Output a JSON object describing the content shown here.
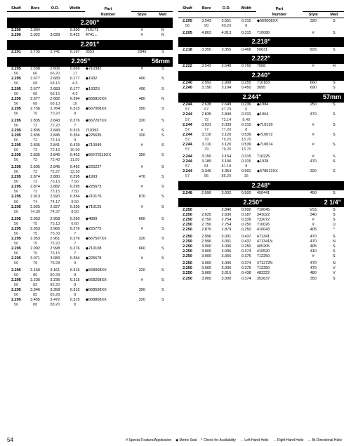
{
  "page_number": "54",
  "headers": [
    "Shaft",
    "Bore",
    "O.D.",
    "Width",
    "Part",
    "Number",
    "Style",
    "Matl"
  ],
  "legend_items": [
    "# Special Feature/Application",
    "◆ Metric Seal",
    "* Check for Availability",
    "← Left Hand Helix",
    "→ Right Hand Helix",
    "↔ Bi-Directional Helix"
  ],
  "left_sections": [
    {
      "label": "2.200\"",
      "rows": [
        [
          "2.200",
          "2.804",
          "-",
          "0.300",
          "710171",
          "#",
          "N"
        ],
        [
          "2.200",
          "3.022",
          "3.028",
          "0.422",
          "4741←",
          "#",
          "N"
        ]
      ]
    },
    {
      "label": "2.201\"",
      "rows": [
        [
          "2.201",
          "2.735",
          "2.741",
          "0.197",
          "3553",
          "2840",
          "S"
        ]
      ]
    },
    {
      "label": "2.205\"",
      "right": "56mm",
      "rows": [
        [
          "2.205",
          "2.598",
          "2.606",
          "0.669",
          "◆710382",
          "#",
          "S"
        ],
        [
          "56",
          "66",
          "66.20",
          "17",
          "",
          "",
          ""
        ],
        [
          "2.205",
          "2.677",
          "2.683",
          "0.177",
          "◆1932",
          "490",
          "S"
        ],
        [
          "56",
          "68",
          "68.15",
          "4.5",
          "",
          "",
          ""
        ],
        [
          "2.205",
          "2.677",
          "2.683",
          "0.177",
          "◆1932S",
          "490",
          "S"
        ],
        [
          "56",
          "68",
          "68.15",
          "4.5",
          "",
          "",
          ""
        ],
        [
          "2.205",
          "2.677",
          "2.682",
          "0.394",
          "◆566810XX",
          "480",
          "N"
        ],
        [
          "56",
          "68",
          "68.13",
          "10",
          "",
          "",
          ""
        ],
        [
          "2.205",
          "2.756",
          "2.764",
          "0.315",
          "◆567008XX",
          "350",
          "S"
        ],
        [
          "56",
          "70",
          "70.20",
          "8",
          "",
          "",
          ""
        ]
      ]
    },
    {
      "label": "",
      "rows": [
        [
          "2.205",
          "2.835",
          "2.843",
          "0.276",
          "◆567207XX",
          "320",
          "S"
        ],
        [
          "56",
          "72",
          "72.20",
          "7",
          "",
          "",
          ""
        ],
        [
          "2.205",
          "2.835",
          "2.843",
          "0.315",
          "710393",
          "#",
          "S"
        ],
        [
          "2.205",
          "2.835",
          "2.845",
          "0.354",
          "◆225635",
          "320",
          "S"
        ],
        [
          "56",
          "72",
          "72.14",
          "9",
          "",
          "",
          ""
        ],
        [
          "2.205",
          "2.835",
          "2.841",
          "0.429",
          "◆710049",
          "#",
          "S"
        ],
        [
          "56",
          "72",
          "72.16",
          "10.90",
          "",
          "",
          ""
        ],
        [
          "2.205",
          "2.835",
          "2.846",
          "0.453",
          "◆56X72115XX",
          "350",
          "S"
        ],
        [
          "56",
          "72",
          "72.40",
          "11.50",
          "",
          "",
          ""
        ]
      ]
    },
    {
      "label": "",
      "rows": [
        [
          "2.205",
          "2.835",
          "2.845",
          "0.492",
          "◆225227",
          "#",
          "S"
        ],
        [
          "56",
          "72",
          "72.27",
          "12.50",
          "",
          "",
          ""
        ],
        [
          "2.205",
          "2.874",
          "2.880",
          "0.295",
          "◆1993",
          "470",
          "S"
        ],
        [
          "56",
          "73",
          "73.15",
          "7.50",
          "",
          "",
          ""
        ],
        [
          "2.205",
          "2.874",
          "2.882",
          "0.295",
          "◆225673",
          "#",
          "S"
        ],
        [
          "56",
          "73",
          "73.15",
          "7.50",
          "",
          "",
          ""
        ],
        [
          "2.205",
          "2.913",
          "2.920",
          "0.354",
          "◆710176",
          "870",
          "S"
        ],
        [
          "56",
          "74",
          "74.17",
          "9.50",
          "",
          "",
          ""
        ],
        [
          "2.205",
          "2.925",
          "2.927",
          "0.335",
          "◆710125",
          "#",
          "S"
        ],
        [
          "56",
          "74.30",
          "74.37",
          "8.50",
          "",
          "",
          ""
        ]
      ]
    },
    {
      "label": "",
      "rows": [
        [
          "2.205",
          "2.953",
          "2.958",
          "0.260",
          "◆4899",
          "660",
          "S"
        ],
        [
          "56",
          "75",
          "75.13",
          "6.60",
          "",
          "",
          ""
        ],
        [
          "2.205",
          "2.953",
          "2.966",
          "0.276",
          "◆225775",
          "#",
          "S"
        ],
        [
          "56",
          "75",
          "75.33",
          "7",
          "",
          "",
          ""
        ],
        [
          "2.205",
          "2.953",
          "2.961",
          "0.276",
          "◆567507XX",
          "320",
          "S"
        ],
        [
          "56",
          "75",
          "75.20",
          "7",
          "",
          "",
          ""
        ],
        [
          "2.205",
          "2.992",
          "2.998",
          "0.276",
          "◆710108",
          "660",
          "S"
        ],
        [
          "56",
          "76",
          "76.15",
          "7",
          "",
          "",
          ""
        ],
        [
          "2.205",
          "3.071",
          "3.083",
          "0.354",
          "◆225678",
          "#",
          "S"
        ],
        [
          "56",
          "78",
          "78.28",
          "9",
          "",
          "",
          ""
        ]
      ]
    },
    {
      "label": "",
      "rows": [
        [
          "2.205",
          "3.150",
          "3.161",
          "0.315",
          "◆568008XX",
          "320",
          "S"
        ],
        [
          "56",
          "80",
          "80.28",
          "8",
          "",
          "",
          ""
        ],
        [
          "2.205",
          "3.236",
          "3.236",
          "0.315",
          "◆568208XX",
          "#",
          "S"
        ],
        [
          "56",
          "82",
          "82.20",
          "8",
          "",
          "",
          ""
        ],
        [
          "2.205",
          "3.346",
          "3.358",
          "0.315",
          "◆568508XX",
          "350",
          "S"
        ],
        [
          "56",
          "85",
          "85.28",
          "8",
          "",
          "",
          ""
        ],
        [
          "2.205",
          "3.465",
          "3.472",
          "0.315",
          "◆568808XX",
          "320",
          "S"
        ],
        [
          "56",
          "88",
          "88.20",
          "8",
          "",
          "",
          ""
        ]
      ]
    }
  ],
  "right_sections": [
    {
      "label": "",
      "rows": [
        [
          "2.205",
          "3.543",
          "3.551",
          "0.315",
          "◆569008XX",
          "320",
          "S"
        ],
        [
          "56",
          "90",
          "90.20",
          "8",
          "",
          "",
          ""
        ]
      ]
    },
    {
      "label": "",
      "rows": [
        [
          "2.205",
          "4.803",
          "4.813",
          "0.315",
          "710086",
          "#",
          "S"
        ]
      ]
    },
    {
      "label": "2.218\"",
      "rows": [
        [
          "2.218",
          "3.350",
          "3.355",
          "0.468",
          "50631",
          "50S",
          "S"
        ]
      ]
    },
    {
      "label": "2.222\"",
      "rows": [
        [
          "2.222",
          "3.543",
          "3.548",
          "0.760",
          "7568",
          "#",
          "H"
        ]
      ]
    },
    {
      "label": "2.240\"",
      "rows": [
        [
          "2.240",
          "2.992",
          "2.998",
          "0.255",
          "710183",
          "660",
          "S"
        ],
        [
          "2.240",
          "3.190",
          "3.194",
          "0.450",
          "3095",
          "690",
          "S"
        ]
      ]
    },
    {
      "label": "2.244\"",
      "right": "57mm",
      "rows": [
        [
          "2.244",
          "2.638",
          "2.649",
          "0.236",
          "◆1984",
          "250",
          "S"
        ],
        [
          "57",
          "67",
          "67.29",
          "6",
          "",
          "",
          ""
        ],
        [
          "2.244",
          "2.835",
          "2.840",
          "0.331",
          "◆1964",
          "470",
          "S"
        ],
        [
          "57",
          "72",
          "72.14",
          "8.40",
          "",
          "",
          ""
        ],
        [
          "2.244",
          "3.031",
          "3.039",
          "0.315",
          "◆710129",
          "#",
          "S"
        ],
        [
          "57",
          "77",
          "77.20",
          "8",
          "",
          "",
          ""
        ],
        [
          "2.244",
          "3.110",
          "3.120",
          "0.539",
          "◆710072",
          "#",
          "S"
        ],
        [
          "57",
          "79",
          "79.25",
          "13.70",
          "",
          "",
          ""
        ],
        [
          "2.244",
          "3.110",
          "3.120",
          "0.539",
          "◆710074",
          "#",
          "S"
        ],
        [
          "57",
          "79",
          "79.25",
          "13.70",
          "",
          "",
          ""
        ]
      ]
    },
    {
      "label": "",
      "rows": [
        [
          "2.244",
          "3.150",
          "3.154",
          "0.315",
          "710225",
          "#",
          "S"
        ],
        [
          "2.244",
          "3.189",
          "3.196",
          "0.315",
          "◆1928",
          "470",
          "S"
        ],
        [
          "57",
          "81",
          "81.18",
          "8",
          "",
          "",
          ""
        ],
        [
          "2.244",
          "3.346",
          "3.354",
          "0.591",
          "◆578513XX",
          "320",
          "S"
        ],
        [
          "57",
          "85",
          "85.20",
          "15",
          "",
          "",
          ""
        ]
      ]
    },
    {
      "label": "2.248\"",
      "rows": [
        [
          "2.248",
          "2.996",
          "3.002",
          "0.500",
          "450441",
          "450",
          "S"
        ]
      ]
    },
    {
      "label": "2.250\"",
      "right": "2 1/4\"",
      "rows": [
        [
          "2.250",
          "-",
          "2.840",
          "0.500",
          "710045",
          "VS1",
          "S"
        ],
        [
          "2.250",
          "2.625",
          "2.636",
          "0.187",
          "341022",
          "340",
          "S"
        ],
        [
          "2.250",
          "2.750",
          "2.754",
          "0.339",
          "722072",
          "#",
          "S"
        ],
        [
          "2.250",
          "2.750",
          "2.754",
          "0.250",
          "710026",
          "#",
          "U"
        ],
        [
          "2.250",
          "2.875",
          "2.879",
          "0.250",
          "410043",
          "405",
          "*"
        ]
      ]
    },
    {
      "label": "",
      "rows": [
        [
          "2.250",
          "2.996",
          "3.001",
          "0.437",
          "471341",
          "470",
          "S"
        ],
        [
          "2.250",
          "2.996",
          "3.001",
          "0.437",
          "471341N",
          "470",
          "N"
        ],
        [
          "2.250",
          "3.000",
          "3.006",
          "0.250",
          "405205",
          "405",
          "S"
        ],
        [
          "2.250",
          "3.000",
          "3.006",
          "0.374",
          "410520",
          "410",
          "S"
        ],
        [
          "2.250",
          "3.000",
          "3.066",
          "0.375",
          "712250",
          "#",
          "S"
        ]
      ]
    },
    {
      "label": "",
      "rows": [
        [
          "2.250",
          "3.000",
          "3.006",
          "0.374",
          "471272N",
          "470",
          "N"
        ],
        [
          "2.250",
          "3.000",
          "3.005",
          "0.375",
          "712250",
          "470",
          "V"
        ],
        [
          "2.250",
          "3.000",
          "3.015",
          "0.438",
          "483222",
          "480",
          "V"
        ],
        [
          "2.250",
          "3.000",
          "3.000",
          "0.374",
          "352637",
          "350",
          "S"
        ]
      ]
    }
  ]
}
